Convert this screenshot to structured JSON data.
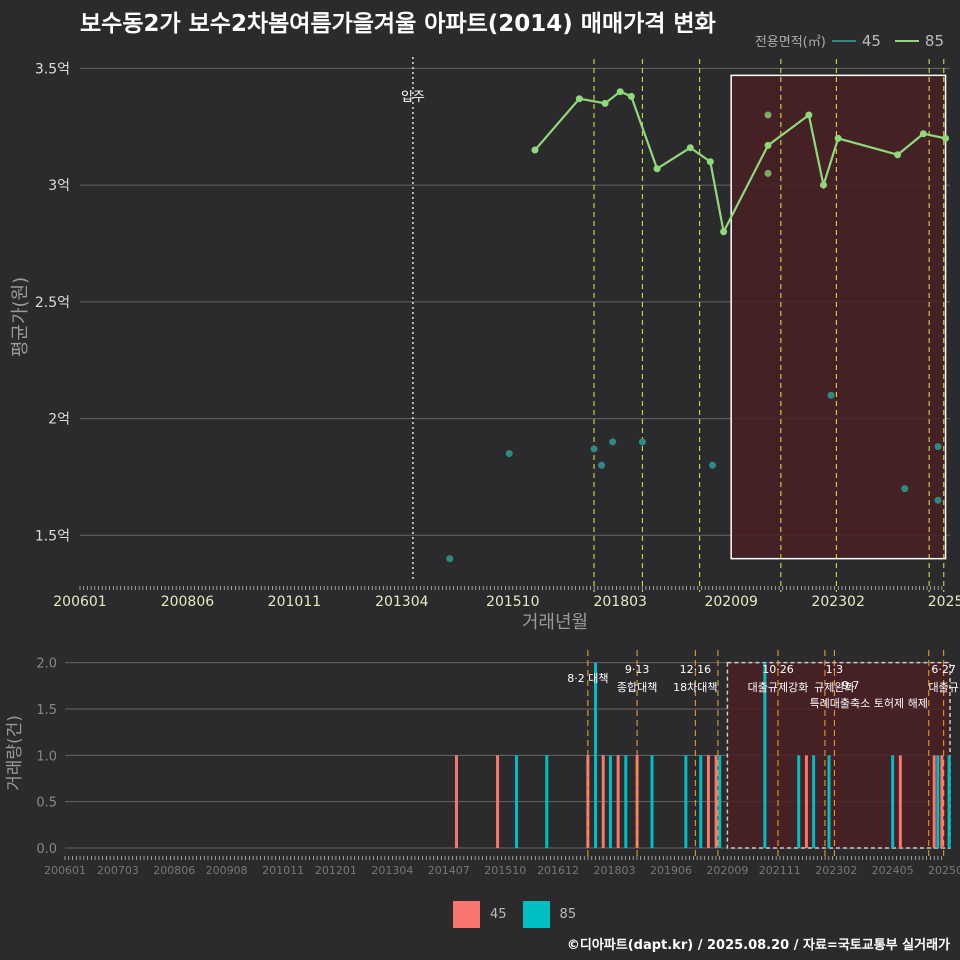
{
  "title": "보수동2가 보수2차봄여름가을겨울 아파트(2014) 매매가격 변화",
  "legend_title": "전용면적(㎡)",
  "colors": {
    "s45": "#2e8b83",
    "s85": "#8fd97a",
    "bar45": "#f8766d",
    "bar85": "#00bfc4",
    "policy": "#e8e84a",
    "policyOrange": "#f5a623",
    "highlight": "#4a1f24"
  },
  "credit": "©디아파트(dapt.kr) / 2025.08.20 / 자료=국토교통부 실거래가",
  "chart_data": [
    {
      "type": "line",
      "title": "보수동2가 보수2차봄여름가을겨울 아파트(2014) 매매가격 변화",
      "xlabel": "거래년월",
      "ylabel": "평균가(원)",
      "xlim": [
        2006.0,
        2025.6
      ],
      "ylim": [
        1.3,
        3.57
      ],
      "x_tick_labels": [
        "200601",
        "200806",
        "201011",
        "201304",
        "201510",
        "201803",
        "202009",
        "202302",
        "2025"
      ],
      "x_tick_values": [
        2006.0,
        2008.42,
        2010.83,
        2013.25,
        2015.75,
        2018.17,
        2020.67,
        2023.08,
        2025.5
      ],
      "y_tick_values": [
        1.5,
        2.0,
        2.5,
        3.0,
        3.5
      ],
      "y_tick_labels": [
        "1.5억",
        "2억",
        "2.5억",
        "3억",
        "3.5억"
      ],
      "annotation": {
        "label": "입주",
        "x": 2013.5
      },
      "policy_lines": [
        2017.58,
        2018.67,
        2019.96,
        2021.79,
        2023.04,
        2025.13,
        2025.46
      ],
      "highlight_range": [
        2020.67,
        2025.5
      ],
      "highlight_y": [
        1.4,
        3.47
      ],
      "series": [
        {
          "name": "85",
          "points": [
            [
              2016.25,
              3.15
            ],
            [
              2017.25,
              3.37
            ],
            [
              2017.83,
              3.35
            ],
            [
              2018.17,
              3.4
            ],
            [
              2018.42,
              3.38
            ],
            [
              2019.0,
              3.07
            ],
            [
              2019.75,
              3.16
            ],
            [
              2020.2,
              3.1
            ],
            [
              2020.5,
              2.8
            ],
            [
              2021.5,
              3.17
            ],
            [
              2022.42,
              3.3
            ],
            [
              2022.75,
              3.0
            ],
            [
              2023.08,
              3.2
            ],
            [
              2024.42,
              3.13
            ],
            [
              2025.0,
              3.22
            ],
            [
              2025.5,
              3.2
            ]
          ],
          "extra_points": [
            [
              2021.5,
              3.3
            ],
            [
              2021.5,
              3.05
            ]
          ]
        },
        {
          "name": "45",
          "points": [
            [
              2014.33,
              1.4
            ],
            [
              2015.67,
              1.85
            ],
            [
              2017.58,
              1.87
            ],
            [
              2017.75,
              1.8
            ],
            [
              2018.0,
              1.9
            ],
            [
              2018.67,
              1.9
            ],
            [
              2020.25,
              1.8
            ],
            [
              2022.92,
              2.1
            ],
            [
              2024.58,
              1.7
            ],
            [
              2025.33,
              1.88
            ],
            [
              2025.33,
              1.65
            ]
          ]
        }
      ]
    },
    {
      "type": "bar",
      "ylabel": "거래량(건)",
      "xlim": [
        2006.0,
        2025.6
      ],
      "ylim": [
        0,
        2.05
      ],
      "x_tick_labels": [
        "200601",
        "200703",
        "200806",
        "200908",
        "201011",
        "201201",
        "201304",
        "201407",
        "201510",
        "201612",
        "201803",
        "201906",
        "202009",
        "202111",
        "202302",
        "202405",
        "20250"
      ],
      "x_tick_values": [
        2006.0,
        2007.17,
        2008.42,
        2009.58,
        2010.83,
        2012.0,
        2013.25,
        2014.5,
        2015.75,
        2016.92,
        2018.17,
        2019.42,
        2020.67,
        2021.83,
        2023.08,
        2024.33,
        2025.5
      ],
      "y_tick_values": [
        0.0,
        0.5,
        1.0,
        1.5,
        2.0
      ],
      "y_tick_labels": [
        "0.0",
        "0.5",
        "1.0",
        "1.5",
        "2.0"
      ],
      "policy_lines": [
        2017.58,
        2018.67,
        2019.96,
        2020.46,
        2021.79,
        2022.83,
        2023.04,
        2025.13,
        2025.46
      ],
      "policy_labels": [
        {
          "x": 2017.58,
          "date": "",
          "name": "8·2 대책"
        },
        {
          "x": 2018.67,
          "date": "9·13",
          "name": "종합대책"
        },
        {
          "x": 2019.96,
          "date": "12·16",
          "name": "18차대책"
        },
        {
          "x": 2021.79,
          "date": "10·26",
          "name": "대출규제강화"
        },
        {
          "x": 2023.04,
          "date": "1·3",
          "name": "규제완화"
        },
        {
          "x": 2023.4,
          "date": "",
          "name": "9·7"
        },
        {
          "x": 2023.8,
          "date": "",
          "name": "특례대출축소 토허제 해제"
        },
        {
          "x": 2025.46,
          "date": "6·27",
          "name": "대출규"
        }
      ],
      "series": [
        {
          "name": "45",
          "bars": [
            [
              2014.67,
              1
            ],
            [
              2015.58,
              1
            ],
            [
              2017.58,
              1
            ],
            [
              2017.92,
              1
            ],
            [
              2018.25,
              1
            ],
            [
              2018.67,
              1
            ],
            [
              2020.25,
              1
            ],
            [
              2020.42,
              1
            ],
            [
              2022.42,
              1
            ],
            [
              2024.5,
              1
            ],
            [
              2025.25,
              1
            ],
            [
              2025.42,
              1
            ]
          ]
        },
        {
          "name": "85",
          "bars": [
            [
              2016.0,
              1
            ],
            [
              2016.67,
              1
            ],
            [
              2017.75,
              2
            ],
            [
              2018.08,
              1
            ],
            [
              2018.42,
              1
            ],
            [
              2019.0,
              1
            ],
            [
              2019.75,
              1
            ],
            [
              2020.08,
              1
            ],
            [
              2020.5,
              1
            ],
            [
              2021.5,
              2
            ],
            [
              2022.25,
              1
            ],
            [
              2022.58,
              1
            ],
            [
              2022.92,
              1
            ],
            [
              2024.33,
              1
            ],
            [
              2025.33,
              1
            ],
            [
              2025.58,
              1
            ]
          ]
        }
      ]
    }
  ]
}
